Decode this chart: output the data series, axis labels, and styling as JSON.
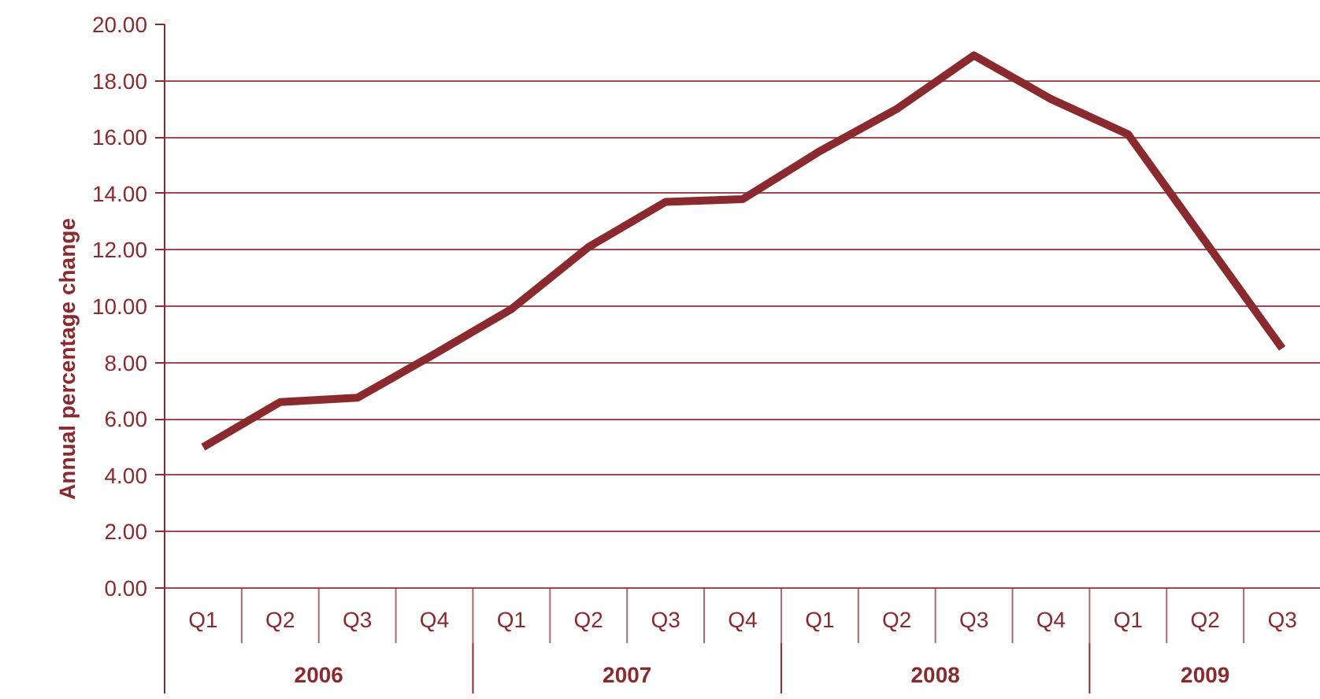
{
  "chart_data": {
    "type": "line",
    "ylabel": "Annual percentage change",
    "categories": [
      "Q1",
      "Q2",
      "Q3",
      "Q4",
      "Q1",
      "Q2",
      "Q3",
      "Q4",
      "Q1",
      "Q2",
      "Q3",
      "Q4",
      "Q1",
      "Q2",
      "Q3"
    ],
    "values": [
      5.0,
      6.6,
      6.75,
      8.3,
      9.9,
      12.1,
      13.7,
      13.8,
      15.5,
      17.0,
      18.9,
      17.35,
      16.1,
      12.3,
      8.5
    ],
    "color": "#8b2a2e",
    "ylim": [
      0,
      20
    ],
    "yticks": [
      {
        "value": 0,
        "label": "0.00"
      },
      {
        "value": 2,
        "label": "2.00"
      },
      {
        "value": 4,
        "label": "4.00"
      },
      {
        "value": 6,
        "label": "6.00"
      },
      {
        "value": 8,
        "label": "8.00"
      },
      {
        "value": 10,
        "label": "10.00"
      },
      {
        "value": 12,
        "label": "12.00"
      },
      {
        "value": 14,
        "label": "14.00"
      },
      {
        "value": 16,
        "label": "16.00"
      },
      {
        "value": 18,
        "label": "18.00"
      },
      {
        "value": 20,
        "label": "20.00"
      }
    ],
    "grid": "y",
    "annotations": [
      "2006",
      "2007",
      "2008",
      "2009"
    ]
  }
}
